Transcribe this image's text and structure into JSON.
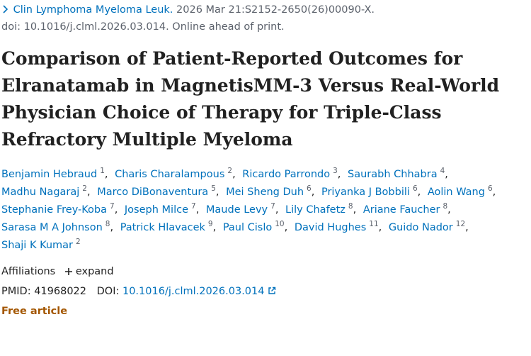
{
  "citation": {
    "journal": "Clin Lymphoma Myeloma Leuk.",
    "details": "2026 Mar 21:S2152-2650(26)00090-X.",
    "doi_line": "doi: 10.1016/j.clml.2026.03.014. Online ahead of print."
  },
  "title": "Comparison of Patient-Reported Outcomes for Elranatamab in MagnetisMM-3 Versus Real-World Physician Choice of Therapy for Triple-Class Refractory Multiple Myeloma",
  "authors": [
    {
      "name": "Benjamin Hebraud",
      "affiliation": "1"
    },
    {
      "name": "Charis Charalampous",
      "affiliation": "2"
    },
    {
      "name": "Ricardo Parrondo",
      "affiliation": "3"
    },
    {
      "name": "Saurabh Chhabra",
      "affiliation": "4"
    },
    {
      "name": "Madhu Nagaraj",
      "affiliation": "2"
    },
    {
      "name": "Marco DiBonaventura",
      "affiliation": "5"
    },
    {
      "name": "Mei Sheng Duh",
      "affiliation": "6"
    },
    {
      "name": "Priyanka J Bobbili",
      "affiliation": "6"
    },
    {
      "name": "Aolin Wang",
      "affiliation": "6"
    },
    {
      "name": "Stephanie Frey-Koba",
      "affiliation": "7"
    },
    {
      "name": "Joseph Milce",
      "affiliation": "7"
    },
    {
      "name": "Maude Levy",
      "affiliation": "7"
    },
    {
      "name": "Lily Chafetz",
      "affiliation": "8"
    },
    {
      "name": "Ariane Faucher",
      "affiliation": "8"
    },
    {
      "name": "Sarasa M A Johnson",
      "affiliation": "8"
    },
    {
      "name": "Patrick Hlavacek",
      "affiliation": "9"
    },
    {
      "name": "Paul Cislo",
      "affiliation": "10"
    },
    {
      "name": "David Hughes",
      "affiliation": "11"
    },
    {
      "name": "Guido Nador",
      "affiliation": "12"
    },
    {
      "name": "Shaji K Kumar",
      "affiliation": "2"
    }
  ],
  "affiliations": {
    "label": "Affiliations",
    "toggle": "expand"
  },
  "identifiers": {
    "pmid_label": "PMID:",
    "pmid": "41968022",
    "doi_label": "DOI:",
    "doi": "10.1016/j.clml.2026.03.014"
  },
  "free_article": "Free article"
}
